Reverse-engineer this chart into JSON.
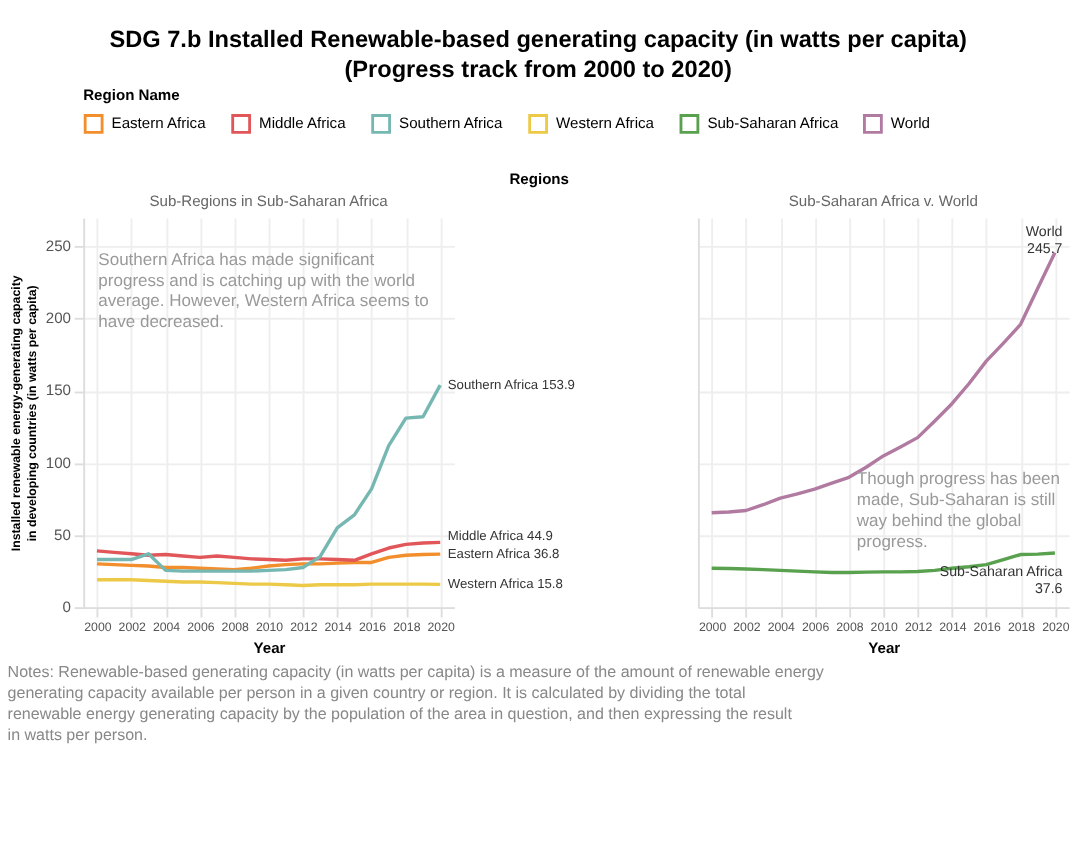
{
  "chart_data": [
    {
      "type": "line",
      "title": "SDG 7.b Installed Renewable-based generating capacity (in watts per capita)",
      "subtitle": "(Progress track from 2000 to 2020)",
      "legend_title": "Region Name",
      "legend": "top",
      "xlabel": "Year",
      "ylabel": "Installed renewable energy-generating capacity in developing countries (in watts per capita)",
      "grid": true,
      "annotations": [
        "Sub-Regions in Sub-Saharan Africa",
        "Southern Africa has made significant progress and is catching up with the world average. However, Western Africa seems to have decreased.",
        "Regions",
        "Notes: Renewable-based generating capacity (in watts per capita) is a measure of the amount of renewable energy generating capacity available per person in a given country or region. It is calculated by dividing the total renewable energy generating capacity by the population of the area in question, and then expressing the result in watts per person."
      ],
      "x": [
        2000,
        2001,
        2002,
        2003,
        2004,
        2005,
        2006,
        2007,
        2008,
        2009,
        2010,
        2011,
        2012,
        2013,
        2014,
        2015,
        2016,
        2017,
        2018,
        2019,
        2020
      ],
      "xlim": [
        1999.2,
        2020.8
      ],
      "xticks": [
        2000,
        2002,
        2004,
        2006,
        2008,
        2010,
        2012,
        2014,
        2016,
        2018,
        2020
      ],
      "ylim": [
        0,
        270
      ],
      "yticks": [
        0,
        50,
        100,
        150,
        200,
        250
      ],
      "series": [
        {
          "name": "Eastern Africa",
          "color": "#f28e2b",
          "values": [
            30,
            29.5,
            29,
            28.5,
            27.5,
            27.5,
            27,
            26.5,
            26,
            27,
            28.5,
            29.5,
            30,
            30,
            30.5,
            31,
            31,
            34.5,
            36,
            36.5,
            36.8
          ],
          "value_labels": [
            null,
            null,
            null,
            null,
            null,
            null,
            null,
            null,
            null,
            null,
            null,
            null,
            null,
            null,
            null,
            null,
            null,
            null,
            null,
            null,
            "36.8"
          ]
        },
        {
          "name": "Middle Africa",
          "color": "#e15759",
          "values": [
            39,
            38,
            37,
            36,
            36.5,
            35.5,
            34.5,
            35.5,
            34.5,
            33.5,
            33,
            32.5,
            33.5,
            33.5,
            33,
            32.5,
            37,
            41,
            43.5,
            44.5,
            44.9
          ],
          "value_labels": [
            null,
            null,
            null,
            null,
            null,
            null,
            null,
            null,
            null,
            null,
            null,
            null,
            null,
            null,
            null,
            null,
            null,
            null,
            null,
            null,
            "44.9"
          ]
        },
        {
          "name": "Southern Africa",
          "color": "#76b7b2",
          "values": [
            33,
            33,
            33,
            37,
            25.5,
            25,
            25,
            25,
            25,
            25,
            25.5,
            26,
            27.5,
            35,
            55,
            64,
            82,
            112,
            131,
            132,
            153.9
          ],
          "value_labels": [
            null,
            null,
            null,
            null,
            null,
            null,
            null,
            null,
            null,
            null,
            null,
            null,
            null,
            null,
            null,
            null,
            null,
            null,
            null,
            null,
            "153.9"
          ]
        },
        {
          "name": "Western Africa",
          "color": "#edc948",
          "values": [
            19,
            19,
            19,
            18.5,
            18,
            17.5,
            17.5,
            17,
            16.5,
            16,
            16,
            15.5,
            15,
            15.5,
            15.5,
            15.5,
            16,
            16,
            16,
            16,
            15.8
          ],
          "value_labels": [
            null,
            null,
            null,
            null,
            null,
            null,
            null,
            null,
            null,
            null,
            null,
            null,
            null,
            null,
            null,
            null,
            null,
            null,
            null,
            null,
            "15.8"
          ]
        }
      ]
    },
    {
      "type": "line",
      "legend": "top",
      "xlabel": "Year",
      "grid": true,
      "tick_labels": "x",
      "annotations": [
        "Sub-Saharan Africa v. World",
        "Though progress has been made, Sub-Saharan is still way behind the global progress."
      ],
      "x": [
        2000,
        2001,
        2002,
        2003,
        2004,
        2005,
        2006,
        2007,
        2008,
        2009,
        2010,
        2011,
        2012,
        2013,
        2014,
        2015,
        2016,
        2017,
        2018,
        2019,
        2020
      ],
      "xlim": [
        1999.2,
        2020.8
      ],
      "xticks": [
        2000,
        2002,
        2004,
        2006,
        2008,
        2010,
        2012,
        2014,
        2016,
        2018,
        2020
      ],
      "ylim": [
        0,
        270
      ],
      "yticks": [
        0,
        50,
        100,
        150,
        200,
        250
      ],
      "series": [
        {
          "name": "Sub-Saharan Africa",
          "color": "#59a14f",
          "values": [
            27,
            26.8,
            26.5,
            26,
            25.5,
            25,
            24.5,
            24,
            24,
            24.3,
            24.5,
            24.5,
            24.7,
            25.5,
            27,
            28,
            29.5,
            33,
            36.5,
            36.8,
            37.6
          ],
          "value_labels": [
            null,
            null,
            null,
            null,
            null,
            null,
            null,
            null,
            null,
            null,
            null,
            null,
            null,
            null,
            null,
            null,
            null,
            null,
            null,
            null,
            "37.6"
          ]
        },
        {
          "name": "World",
          "color": "#b07aa1",
          "values": [
            65.4,
            66,
            67,
            71,
            75.6,
            78.5,
            81.8,
            86,
            90,
            97,
            104.8,
            111,
            117.5,
            129,
            141,
            155,
            170.5,
            183,
            196,
            221,
            245.7
          ],
          "value_labels": [
            null,
            null,
            null,
            null,
            null,
            null,
            null,
            null,
            null,
            null,
            null,
            null,
            null,
            null,
            null,
            null,
            null,
            null,
            null,
            null,
            "245.7"
          ]
        }
      ]
    }
  ]
}
